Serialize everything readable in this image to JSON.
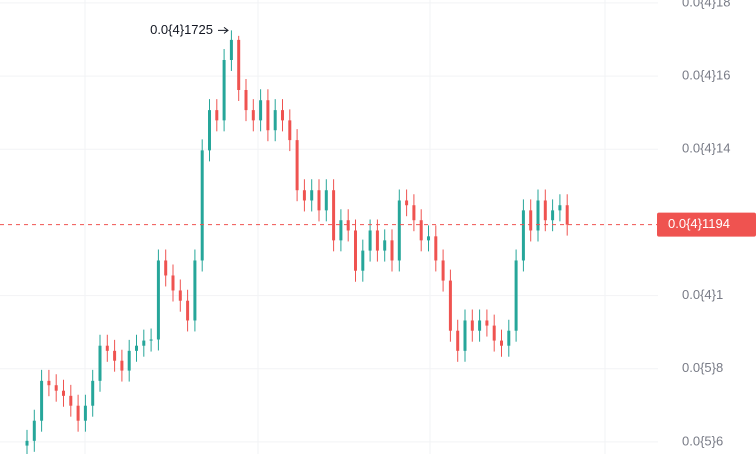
{
  "chart_data": {
    "type": "candlestick",
    "open": [
      5.9e-06,
      6.03e-06,
      6.58e-06,
      7.67e-06,
      7.55e-06,
      7.4e-06,
      7.26e-06,
      6.99e-06,
      6.58e-06,
      6.99e-06,
      7.67e-06,
      8.63e-06,
      8.49e-06,
      8.22e-06,
      7.95e-06,
      8.49e-06,
      8.63e-06,
      8.77e-06,
      8.8e-06,
      1.096e-05,
      1.055e-05,
      1.014e-05,
      9.86e-06,
      9.32e-06,
      1.096e-05,
      1.397e-05,
      1.507e-05,
      1.479e-05,
      1.644e-05,
      1.699e-05,
      1.562e-05,
      1.507e-05,
      1.479e-05,
      1.534e-05,
      1.452e-05,
      1.507e-05,
      1.479e-05,
      1.425e-05,
      1.288e-05,
      1.26e-05,
      1.288e-05,
      1.233e-05,
      1.288e-05,
      1.151e-05,
      1.206e-05,
      1.178e-05,
      1.068e-05,
      1.123e-05,
      1.178e-05,
      1.123e-05,
      1.151e-05,
      1.096e-05,
      1.26e-05,
      1.247e-05,
      1.206e-05,
      1.151e-05,
      1.162e-05,
      1.096e-05,
      1.041e-05,
      9.04e-06,
      8.49e-06,
      9.32e-06,
      9.04e-06,
      9.32e-06,
      9.18e-06,
      8.77e-06,
      8.63e-06,
      9.04e-06,
      1.096e-05,
      1.233e-05,
      1.178e-05,
      1.26e-05,
      1.206e-05,
      1.233e-05,
      1.247e-05
    ],
    "high": [
      6.33e-06,
      6.88e-06,
      7.97e-06,
      7.97e-06,
      7.85e-06,
      7.7e-06,
      7.56e-06,
      7.29e-06,
      7.29e-06,
      7.97e-06,
      8.93e-06,
      8.93e-06,
      8.79e-06,
      8.52e-06,
      8.79e-06,
      8.93e-06,
      9.07e-06,
      9.1e-06,
      1.126e-05,
      1.126e-05,
      1.085e-05,
      1.044e-05,
      1.016e-05,
      1.126e-05,
      1.427e-05,
      1.537e-05,
      1.537e-05,
      1.674e-05,
      1.725e-05,
      1.71e-05,
      1.592e-05,
      1.537e-05,
      1.564e-05,
      1.564e-05,
      1.537e-05,
      1.537e-05,
      1.509e-05,
      1.455e-05,
      1.318e-05,
      1.318e-05,
      1.318e-05,
      1.318e-05,
      1.318e-05,
      1.236e-05,
      1.236e-05,
      1.208e-05,
      1.153e-05,
      1.208e-05,
      1.208e-05,
      1.181e-05,
      1.181e-05,
      1.29e-05,
      1.29e-05,
      1.277e-05,
      1.236e-05,
      1.192e-05,
      1.192e-05,
      1.126e-05,
      1.071e-05,
      9.34e-06,
      9.62e-06,
      9.62e-06,
      9.62e-06,
      9.62e-06,
      9.48e-06,
      9.07e-06,
      9.34e-06,
      1.126e-05,
      1.263e-05,
      1.263e-05,
      1.29e-05,
      1.29e-05,
      1.263e-05,
      1.277e-05,
      1.277e-05
    ],
    "low": [
      5.6e-06,
      5.73e-06,
      6.28e-06,
      7.25e-06,
      7.1e-06,
      6.96e-06,
      6.69e-06,
      6.28e-06,
      6.28e-06,
      6.69e-06,
      7.37e-06,
      8.19e-06,
      7.92e-06,
      7.65e-06,
      7.65e-06,
      8.19e-06,
      8.33e-06,
      8.47e-06,
      8.5e-06,
      1.025e-05,
      9.84e-06,
      9.56e-06,
      9.02e-06,
      9.02e-06,
      1.066e-05,
      1.367e-05,
      1.449e-05,
      1.449e-05,
      1.614e-05,
      1.532e-05,
      1.477e-05,
      1.449e-05,
      1.449e-05,
      1.422e-05,
      1.422e-05,
      1.449e-05,
      1.395e-05,
      1.258e-05,
      1.23e-05,
      1.23e-05,
      1.203e-05,
      1.203e-05,
      1.121e-05,
      1.121e-05,
      1.148e-05,
      1.038e-05,
      1.038e-05,
      1.093e-05,
      1.093e-05,
      1.093e-05,
      1.066e-05,
      1.066e-05,
      1.217e-05,
      1.176e-05,
      1.121e-05,
      1.121e-05,
      1.066e-05,
      1.011e-05,
      8.74e-06,
      8.19e-06,
      8.19e-06,
      8.74e-06,
      8.74e-06,
      8.88e-06,
      8.47e-06,
      8.33e-06,
      8.33e-06,
      8.74e-06,
      1.066e-05,
      1.148e-05,
      1.148e-05,
      1.176e-05,
      1.176e-05,
      1.203e-05,
      1.164e-05
    ],
    "close": [
      6.03e-06,
      6.58e-06,
      7.67e-06,
      7.55e-06,
      7.4e-06,
      7.26e-06,
      6.99e-06,
      6.58e-06,
      6.99e-06,
      7.67e-06,
      8.63e-06,
      8.49e-06,
      8.22e-06,
      7.95e-06,
      8.49e-06,
      8.63e-06,
      8.77e-06,
      8.8e-06,
      1.096e-05,
      1.055e-05,
      1.014e-05,
      9.86e-06,
      9.32e-06,
      1.096e-05,
      1.397e-05,
      1.507e-05,
      1.479e-05,
      1.644e-05,
      1.699e-05,
      1.562e-05,
      1.507e-05,
      1.479e-05,
      1.534e-05,
      1.452e-05,
      1.507e-05,
      1.479e-05,
      1.425e-05,
      1.288e-05,
      1.26e-05,
      1.288e-05,
      1.233e-05,
      1.288e-05,
      1.151e-05,
      1.206e-05,
      1.178e-05,
      1.068e-05,
      1.123e-05,
      1.178e-05,
      1.123e-05,
      1.151e-05,
      1.096e-05,
      1.26e-05,
      1.247e-05,
      1.206e-05,
      1.151e-05,
      1.162e-05,
      1.096e-05,
      1.041e-05,
      9.04e-06,
      8.49e-06,
      9.32e-06,
      9.04e-06,
      9.32e-06,
      9.18e-06,
      8.77e-06,
      8.63e-06,
      9.04e-06,
      1.096e-05,
      1.233e-05,
      1.178e-05,
      1.26e-05,
      1.206e-05,
      1.233e-05,
      1.247e-05,
      1.194e-05
    ],
    "up_color": "#26a69a",
    "down_color": "#ef5350",
    "ylim": [
      5.67e-06,
      1.808e-05
    ],
    "yticks": [
      {
        "value": 6e-06,
        "label": "0.0{5}6"
      },
      {
        "value": 8e-06,
        "label": "0.0{5}8"
      },
      {
        "value": 1e-05,
        "label": "0.0{4}1"
      },
      {
        "value": 1.4e-05,
        "label": "0.0{4}14"
      },
      {
        "value": 1.6e-05,
        "label": "0.0{4}16"
      },
      {
        "value": 1.8e-05,
        "label": "0.0{4}18"
      }
    ],
    "grid": true,
    "last_price": {
      "value": 1.194e-05,
      "label": "0.0{4}1194",
      "color": "#ef5350"
    },
    "annotation": {
      "value": 1.725e-05,
      "label": "0.0{4}1725"
    }
  }
}
